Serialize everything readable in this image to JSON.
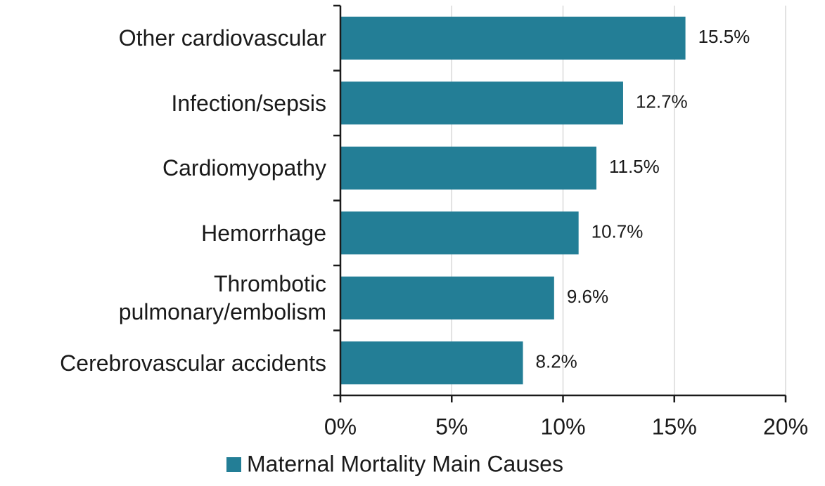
{
  "chart_data": {
    "type": "bar",
    "orientation": "horizontal",
    "categories": [
      "Other cardiovascular",
      "Infection/sepsis",
      "Cardiomyopathy",
      "Hemorrhage",
      "Thrombotic pulmonary/embolism",
      "Cerebrovascular accidents"
    ],
    "series": [
      {
        "name": "Maternal Mortality Main Causes",
        "color": "#237e96",
        "values": [
          15.5,
          12.7,
          11.5,
          10.7,
          9.6,
          8.2
        ],
        "value_labels": [
          "15.5%",
          "12.7%",
          "11.5%",
          "10.7%",
          "9.6%",
          "8.2%"
        ]
      }
    ],
    "xlim": [
      0,
      20
    ],
    "xticks": [
      {
        "value": 0,
        "label": "0%"
      },
      {
        "value": 5,
        "label": "5%"
      },
      {
        "value": 10,
        "label": "10%"
      },
      {
        "value": 15,
        "label": "15%"
      },
      {
        "value": 20,
        "label": "20%"
      }
    ],
    "grid": true,
    "legend": "bottom"
  }
}
